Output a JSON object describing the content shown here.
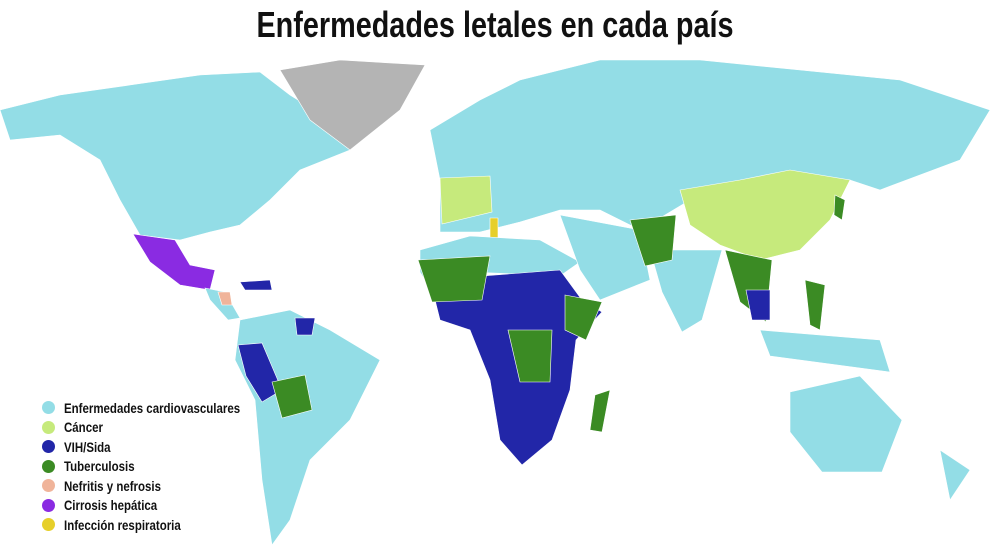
{
  "title": "Enfermedades letales en cada país",
  "colors": {
    "cardio": "#93dde6",
    "cancer": "#c6ea7c",
    "vih": "#2226a8",
    "tb": "#3b8b24",
    "nefritis": "#f0b49a",
    "cirrosis": "#8a2be2",
    "infeccion": "#e6cf2a",
    "no_data": "#b4b4b4"
  },
  "legend": [
    {
      "label": "Enfermedades cardiovasculares",
      "color": "#93dde6"
    },
    {
      "label": "Cáncer",
      "color": "#c6ea7c"
    },
    {
      "label": "VIH/Sida",
      "color": "#2226a8"
    },
    {
      "label": "Tuberculosis",
      "color": "#3b8b24"
    },
    {
      "label": "Nefritis y nefrosis",
      "color": "#f0b49a"
    },
    {
      "label": "Cirrosis hepática",
      "color": "#8a2be2"
    },
    {
      "label": "Infección respiratoria",
      "color": "#e6cf2a"
    }
  ]
}
